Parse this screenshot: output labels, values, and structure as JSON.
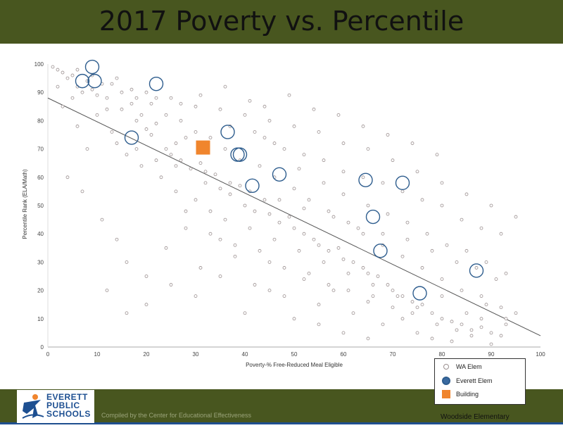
{
  "header": {
    "title": "2017 Poverty vs. Percentile"
  },
  "footer": {
    "logo_text": "EVERETT PUBLIC SCHOOLS",
    "credit": "Compiled by the Center for Educational Effectiveness",
    "school": "Woodside Elementary"
  },
  "legend": {
    "wa": "WA Elem",
    "everett": "Everett Elem",
    "building": "Building"
  },
  "colors": {
    "header_bg": "#48561f",
    "wa_marker": "#9a8f8f",
    "everett_marker": "#2e5d8e",
    "building_marker": "#f0852d",
    "trend": "#555555"
  },
  "chart_data": {
    "type": "scatter",
    "title": "2017 Poverty vs. Percentile",
    "xlabel": "Poverty-% Free-Reduced Meal Eligible",
    "ylabel": "Percentile Rank (ELA/Math)",
    "xlim": [
      0,
      100
    ],
    "ylim": [
      0,
      100
    ],
    "xticks": [
      0,
      10,
      20,
      30,
      40,
      50,
      60,
      70,
      80,
      90,
      100
    ],
    "yticks": [
      0,
      10,
      20,
      30,
      40,
      50,
      60,
      70,
      80,
      90,
      100
    ],
    "grid": false,
    "trendline": {
      "x": [
        0,
        100
      ],
      "y": [
        88,
        4
      ]
    },
    "legend_position": "bottom-right",
    "series": [
      {
        "name": "WA Elem",
        "points": [
          [
            1,
            99
          ],
          [
            2,
            98
          ],
          [
            3,
            97
          ],
          [
            4,
            95
          ],
          [
            5,
            96
          ],
          [
            6,
            92
          ],
          [
            7,
            90
          ],
          [
            9,
            91
          ],
          [
            11,
            93
          ],
          [
            12,
            88
          ],
          [
            14,
            95
          ],
          [
            15,
            84
          ],
          [
            17,
            86
          ],
          [
            18,
            80
          ],
          [
            19,
            82
          ],
          [
            20,
            77
          ],
          [
            21,
            75
          ],
          [
            22,
            79
          ],
          [
            24,
            70
          ],
          [
            25,
            68
          ],
          [
            26,
            72
          ],
          [
            27,
            66
          ],
          [
            28,
            74
          ],
          [
            29,
            63
          ],
          [
            31,
            65
          ],
          [
            32,
            58
          ],
          [
            34,
            61
          ],
          [
            35,
            56
          ],
          [
            37,
            54
          ],
          [
            39,
            57
          ],
          [
            40,
            50
          ],
          [
            42,
            48
          ],
          [
            44,
            52
          ],
          [
            45,
            47
          ],
          [
            47,
            44
          ],
          [
            49,
            46
          ],
          [
            50,
            42
          ],
          [
            52,
            40
          ],
          [
            54,
            38
          ],
          [
            55,
            36
          ],
          [
            57,
            34
          ],
          [
            59,
            35
          ],
          [
            60,
            31
          ],
          [
            62,
            30
          ],
          [
            64,
            28
          ],
          [
            65,
            26
          ],
          [
            67,
            25
          ],
          [
            69,
            22
          ],
          [
            70,
            20
          ],
          [
            72,
            18
          ],
          [
            74,
            16
          ],
          [
            76,
            15
          ],
          [
            78,
            12
          ],
          [
            80,
            10
          ],
          [
            82,
            9
          ],
          [
            84,
            8
          ],
          [
            86,
            6
          ],
          [
            88,
            7
          ],
          [
            90,
            5
          ],
          [
            92,
            4
          ],
          [
            3,
            85
          ],
          [
            6,
            78
          ],
          [
            8,
            70
          ],
          [
            10,
            82
          ],
          [
            13,
            76
          ],
          [
            16,
            68
          ],
          [
            19,
            64
          ],
          [
            23,
            60
          ],
          [
            26,
            55
          ],
          [
            30,
            52
          ],
          [
            33,
            48
          ],
          [
            36,
            45
          ],
          [
            41,
            42
          ],
          [
            46,
            38
          ],
          [
            51,
            34
          ],
          [
            56,
            30
          ],
          [
            61,
            26
          ],
          [
            66,
            22
          ],
          [
            71,
            18
          ],
          [
            75,
            14
          ],
          [
            80,
            18
          ],
          [
            85,
            12
          ],
          [
            89,
            15
          ],
          [
            93,
            10
          ],
          [
            2,
            92
          ],
          [
            5,
            88
          ],
          [
            9,
            96
          ],
          [
            12,
            84
          ],
          [
            15,
            90
          ],
          [
            18,
            88
          ],
          [
            21,
            86
          ],
          [
            24,
            82
          ],
          [
            27,
            80
          ],
          [
            30,
            76
          ],
          [
            33,
            74
          ],
          [
            36,
            70
          ],
          [
            39,
            66
          ],
          [
            43,
            64
          ],
          [
            46,
            60
          ],
          [
            50,
            56
          ],
          [
            53,
            52
          ],
          [
            57,
            48
          ],
          [
            61,
            44
          ],
          [
            64,
            40
          ],
          [
            68,
            36
          ],
          [
            72,
            32
          ],
          [
            76,
            28
          ],
          [
            80,
            24
          ],
          [
            84,
            20
          ],
          [
            88,
            18
          ],
          [
            92,
            14
          ],
          [
            4,
            60
          ],
          [
            7,
            55
          ],
          [
            11,
            45
          ],
          [
            14,
            38
          ],
          [
            16,
            30
          ],
          [
            20,
            25
          ],
          [
            24,
            35
          ],
          [
            28,
            42
          ],
          [
            31,
            28
          ],
          [
            35,
            38
          ],
          [
            38,
            32
          ],
          [
            42,
            22
          ],
          [
            45,
            30
          ],
          [
            48,
            18
          ],
          [
            52,
            24
          ],
          [
            55,
            15
          ],
          [
            58,
            20
          ],
          [
            62,
            12
          ],
          [
            65,
            16
          ],
          [
            68,
            8
          ],
          [
            72,
            10
          ],
          [
            75,
            5
          ],
          [
            78,
            3
          ],
          [
            82,
            2
          ],
          [
            86,
            4
          ],
          [
            90,
            1
          ],
          [
            20,
            90
          ],
          [
            25,
            88
          ],
          [
            30,
            85
          ],
          [
            35,
            84
          ],
          [
            40,
            82
          ],
          [
            45,
            80
          ],
          [
            50,
            78
          ],
          [
            55,
            76
          ],
          [
            60,
            72
          ],
          [
            65,
            70
          ],
          [
            70,
            66
          ],
          [
            75,
            62
          ],
          [
            80,
            58
          ],
          [
            85,
            54
          ],
          [
            90,
            50
          ],
          [
            95,
            46
          ],
          [
            14,
            72
          ],
          [
            18,
            70
          ],
          [
            22,
            66
          ],
          [
            26,
            64
          ],
          [
            32,
            62
          ],
          [
            37,
            58
          ],
          [
            41,
            55
          ],
          [
            47,
            52
          ],
          [
            52,
            49
          ],
          [
            58,
            46
          ],
          [
            63,
            42
          ],
          [
            68,
            40
          ],
          [
            73,
            38
          ],
          [
            78,
            34
          ],
          [
            83,
            30
          ],
          [
            87,
            28
          ],
          [
            91,
            24
          ],
          [
            6,
            98
          ],
          [
            8,
            94
          ],
          [
            10,
            89
          ],
          [
            13,
            93
          ],
          [
            17,
            91
          ],
          [
            22,
            88
          ],
          [
            27,
            86
          ],
          [
            31,
            89
          ],
          [
            36,
            92
          ],
          [
            41,
            87
          ],
          [
            44,
            85
          ],
          [
            49,
            89
          ],
          [
            54,
            84
          ],
          [
            59,
            82
          ],
          [
            64,
            78
          ],
          [
            69,
            75
          ],
          [
            74,
            72
          ],
          [
            79,
            68
          ],
          [
            28,
            48
          ],
          [
            33,
            40
          ],
          [
            38,
            36
          ],
          [
            43,
            34
          ],
          [
            48,
            28
          ],
          [
            53,
            26
          ],
          [
            57,
            22
          ],
          [
            61,
            20
          ],
          [
            66,
            18
          ],
          [
            70,
            14
          ],
          [
            74,
            12
          ],
          [
            79,
            8
          ],
          [
            83,
            6
          ],
          [
            88,
            10
          ],
          [
            93,
            8
          ],
          [
            95,
            12
          ],
          [
            16,
            12
          ],
          [
            20,
            15
          ],
          [
            12,
            20
          ],
          [
            25,
            22
          ],
          [
            30,
            18
          ],
          [
            35,
            25
          ],
          [
            40,
            12
          ],
          [
            45,
            20
          ],
          [
            50,
            10
          ],
          [
            55,
            8
          ],
          [
            60,
            5
          ],
          [
            65,
            3
          ],
          [
            44,
            74
          ],
          [
            48,
            70
          ],
          [
            52,
            68
          ],
          [
            56,
            66
          ],
          [
            60,
            62
          ],
          [
            64,
            60
          ],
          [
            68,
            58
          ],
          [
            72,
            55
          ],
          [
            76,
            52
          ],
          [
            80,
            50
          ],
          [
            84,
            45
          ],
          [
            88,
            42
          ],
          [
            92,
            40
          ],
          [
            37,
            78
          ],
          [
            42,
            76
          ],
          [
            46,
            72
          ],
          [
            51,
            63
          ],
          [
            56,
            58
          ],
          [
            60,
            54
          ],
          [
            65,
            50
          ],
          [
            69,
            47
          ],
          [
            73,
            44
          ],
          [
            77,
            40
          ],
          [
            81,
            36
          ],
          [
            85,
            34
          ],
          [
            89,
            30
          ],
          [
            93,
            26
          ]
        ]
      },
      {
        "name": "Everett Elem",
        "points": [
          [
            9,
            99
          ],
          [
            7,
            94
          ],
          [
            9.5,
            94
          ],
          [
            22,
            93
          ],
          [
            17,
            74
          ],
          [
            36.5,
            76
          ],
          [
            39,
            68
          ],
          [
            38.5,
            68
          ],
          [
            47,
            61
          ],
          [
            41.5,
            57
          ],
          [
            64.5,
            59
          ],
          [
            72,
            58
          ],
          [
            66,
            46
          ],
          [
            67.5,
            34
          ],
          [
            87,
            27
          ],
          [
            75.5,
            19
          ]
        ]
      },
      {
        "name": "Building",
        "points": [
          [
            31.5,
            70.5
          ]
        ]
      }
    ]
  }
}
